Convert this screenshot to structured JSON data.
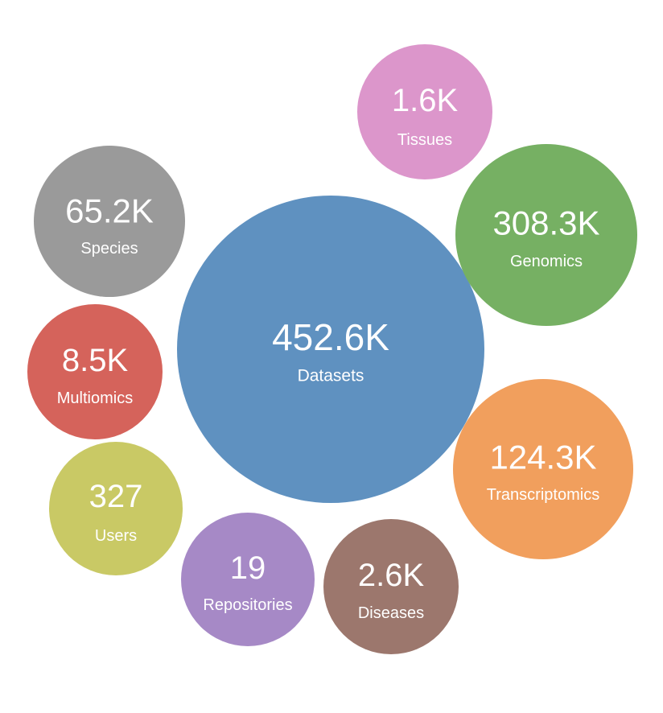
{
  "chart_data": {
    "type": "bubble",
    "title": "",
    "bubbles": [
      {
        "name": "Datasets",
        "display_value": "452.6K",
        "value": 452600,
        "color": "#5f91c0"
      },
      {
        "name": "Genomics",
        "display_value": "308.3K",
        "value": 308300,
        "color": "#76b063"
      },
      {
        "name": "Transcriptomics",
        "display_value": "124.3K",
        "value": 124300,
        "color": "#f19f5d"
      },
      {
        "name": "Species",
        "display_value": "65.2K",
        "value": 65200,
        "color": "#9a9a9a"
      },
      {
        "name": "Multiomics",
        "display_value": "8.5K",
        "value": 8500,
        "color": "#d5635b"
      },
      {
        "name": "Diseases",
        "display_value": "2.6K",
        "value": 2600,
        "color": "#9c776d"
      },
      {
        "name": "Tissues",
        "display_value": "1.6K",
        "value": 1600,
        "color": "#dc96cb"
      },
      {
        "name": "Users",
        "display_value": "327",
        "value": 327,
        "color": "#c9c965"
      },
      {
        "name": "Repositories",
        "display_value": "19",
        "value": 19,
        "color": "#a689c6"
      }
    ]
  }
}
